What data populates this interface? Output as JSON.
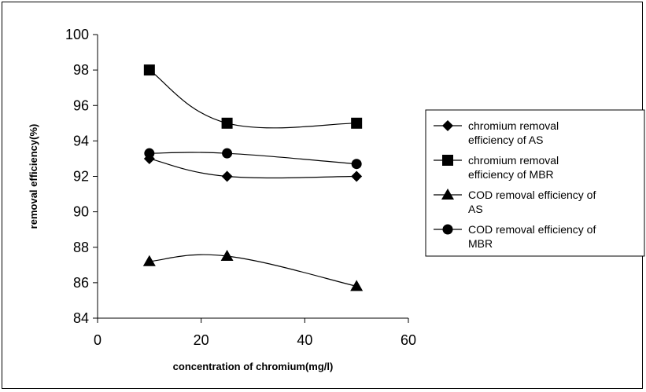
{
  "chart_data": {
    "type": "line",
    "xlabel": "concentration of chromium(mg/l)",
    "ylabel": "removal efficiency(%)",
    "xlim": [
      0,
      60
    ],
    "ylim": [
      84,
      100
    ],
    "xticks": [
      0,
      20,
      40,
      60
    ],
    "yticks": [
      84,
      86,
      88,
      90,
      92,
      94,
      96,
      98,
      100
    ],
    "grid": false,
    "legend_position": "right",
    "x": [
      10,
      25,
      50
    ],
    "series": [
      {
        "name": [
          "chromium removal",
          "efficiency of AS"
        ],
        "marker": "diamond",
        "values": [
          93.0,
          92.0,
          92.0
        ]
      },
      {
        "name": [
          "chromium removal",
          "efficiency of MBR"
        ],
        "marker": "square",
        "values": [
          98.0,
          95.0,
          95.0
        ]
      },
      {
        "name": [
          "COD removal efficiency of",
          "AS"
        ],
        "marker": "triangle",
        "values": [
          87.2,
          87.5,
          85.8
        ]
      },
      {
        "name": [
          "COD removal efficiency of",
          "MBR"
        ],
        "marker": "circle",
        "values": [
          93.3,
          93.3,
          92.7
        ]
      }
    ]
  }
}
